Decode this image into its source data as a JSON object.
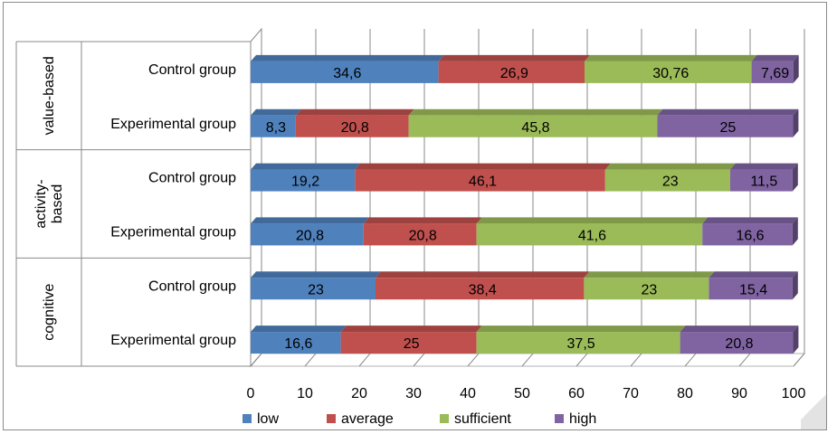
{
  "chart_data": {
    "type": "bar",
    "orientation": "horizontal",
    "stacked": true,
    "style": "3d",
    "groups": [
      {
        "label": "value-based",
        "label_lines": [
          "value-based"
        ],
        "rows": [
          "Control group",
          "Experimental group"
        ]
      },
      {
        "label": "activity-based",
        "label_lines": [
          "activity-",
          "based"
        ],
        "rows": [
          "Control group",
          "Experimental group"
        ]
      },
      {
        "label": "cognitive",
        "label_lines": [
          "cognitive"
        ],
        "rows": [
          "Control group",
          "Experimental group"
        ]
      }
    ],
    "series": [
      {
        "name": "low",
        "color": "#4f81bd",
        "values": [
          34.6,
          8.3,
          19.2,
          20.8,
          23,
          16.6
        ],
        "labels": [
          "34,6",
          "8,3",
          "19,2",
          "20,8",
          "23",
          "16,6"
        ]
      },
      {
        "name": "average",
        "color": "#c0504d",
        "values": [
          26.9,
          20.8,
          46.1,
          20.8,
          38.4,
          25
        ],
        "labels": [
          "26,9",
          "20,8",
          "46,1",
          "20,8",
          "38,4",
          "25"
        ]
      },
      {
        "name": "sufficient",
        "color": "#9bbb59",
        "values": [
          30.76,
          45.8,
          23,
          41.6,
          23,
          37.5
        ],
        "labels": [
          "30,76",
          "45,8",
          "23",
          "41,6",
          "23",
          "37,5"
        ]
      },
      {
        "name": "high",
        "color": "#8064a2",
        "values": [
          7.69,
          25,
          11.5,
          16.6,
          15.4,
          20.8
        ],
        "labels": [
          "7,69",
          "25",
          "11,5",
          "16,6",
          "15,4",
          "20,8"
        ]
      }
    ],
    "xlim": [
      0,
      100
    ],
    "xticks": [
      0,
      10,
      20,
      30,
      40,
      50,
      60,
      70,
      80,
      90,
      100
    ],
    "grid": true,
    "legend": "bottom"
  }
}
